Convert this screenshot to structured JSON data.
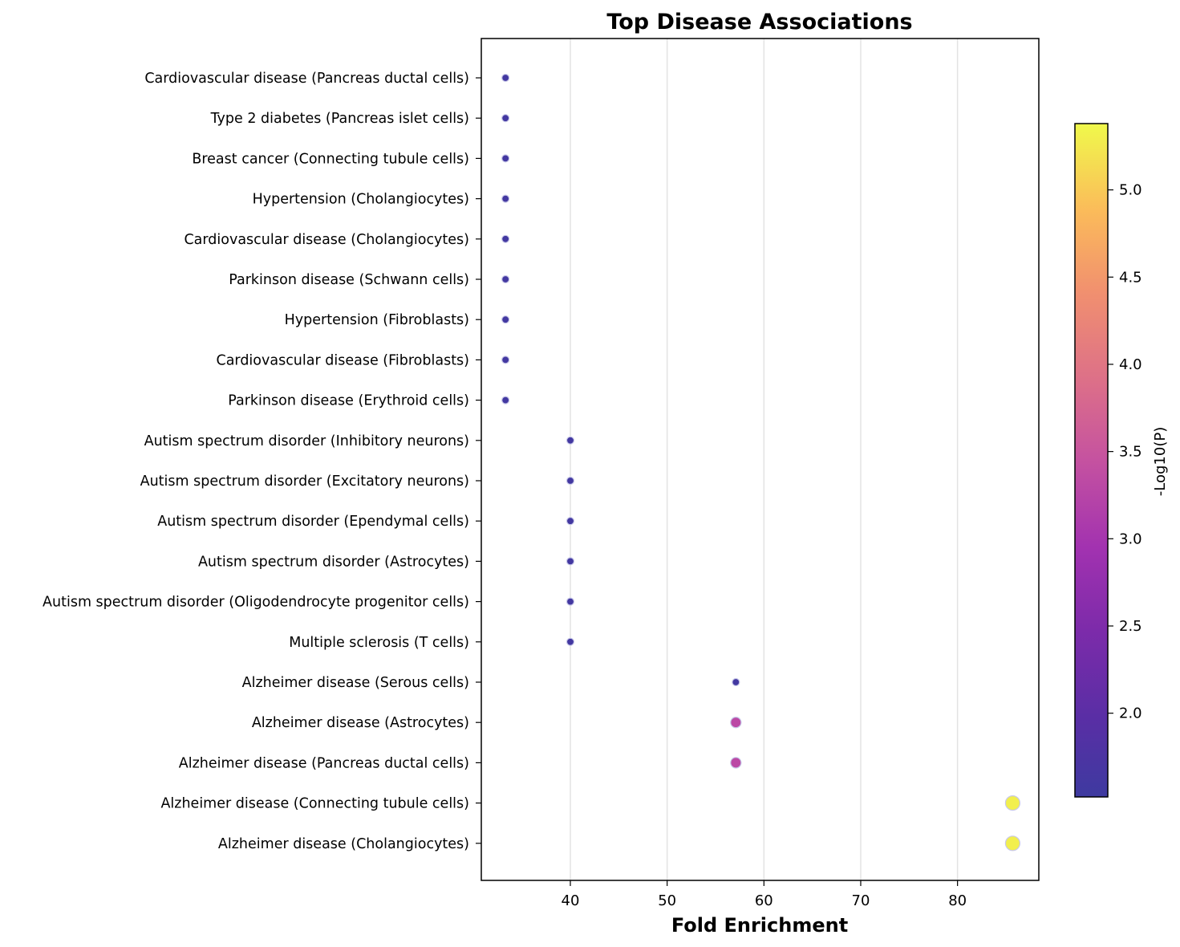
{
  "chart_data": {
    "type": "scatter",
    "title": "Top Disease Associations",
    "xlabel": "Fold Enrichment",
    "ylabel": "",
    "xlim": [
      30.8,
      88.4
    ],
    "xticks": [
      40,
      50,
      60,
      70,
      80
    ],
    "grid": "vertical",
    "colormap": "plasma",
    "colorbar": {
      "label": "-Log10(P)",
      "range": [
        1.52,
        5.38
      ],
      "ticks": [
        "2.0",
        "2.5",
        "3.0",
        "3.5",
        "4.0",
        "4.5",
        "5.0"
      ]
    },
    "points": [
      {
        "label": "Cardiovascular disease (Pancreas ductal cells)",
        "x": 33.3,
        "neg_log10_p": 1.6
      },
      {
        "label": "Type 2 diabetes (Pancreas islet cells)",
        "x": 33.3,
        "neg_log10_p": 1.6
      },
      {
        "label": "Breast cancer (Connecting tubule cells)",
        "x": 33.3,
        "neg_log10_p": 1.6
      },
      {
        "label": "Hypertension (Cholangiocytes)",
        "x": 33.3,
        "neg_log10_p": 1.6
      },
      {
        "label": "Cardiovascular disease (Cholangiocytes)",
        "x": 33.3,
        "neg_log10_p": 1.6
      },
      {
        "label": "Parkinson disease (Schwann cells)",
        "x": 33.3,
        "neg_log10_p": 1.6
      },
      {
        "label": "Hypertension (Fibroblasts)",
        "x": 33.3,
        "neg_log10_p": 1.6
      },
      {
        "label": "Cardiovascular disease (Fibroblasts)",
        "x": 33.3,
        "neg_log10_p": 1.6
      },
      {
        "label": "Parkinson disease (Erythroid cells)",
        "x": 33.3,
        "neg_log10_p": 1.6
      },
      {
        "label": "Autism spectrum disorder (Inhibitory neurons)",
        "x": 40.0,
        "neg_log10_p": 1.6
      },
      {
        "label": "Autism spectrum disorder (Excitatory neurons)",
        "x": 40.0,
        "neg_log10_p": 1.6
      },
      {
        "label": "Autism spectrum disorder (Ependymal cells)",
        "x": 40.0,
        "neg_log10_p": 1.6
      },
      {
        "label": "Autism spectrum disorder (Astrocytes)",
        "x": 40.0,
        "neg_log10_p": 1.6
      },
      {
        "label": "Autism spectrum disorder (Oligodendrocyte progenitor cells)",
        "x": 40.0,
        "neg_log10_p": 1.6
      },
      {
        "label": "Multiple sclerosis (T cells)",
        "x": 40.0,
        "neg_log10_p": 1.6
      },
      {
        "label": "Alzheimer disease (Serous cells)",
        "x": 57.1,
        "neg_log10_p": 1.6
      },
      {
        "label": "Alzheimer disease (Astrocytes)",
        "x": 57.1,
        "neg_log10_p": 3.3
      },
      {
        "label": "Alzheimer disease (Pancreas ductal cells)",
        "x": 57.1,
        "neg_log10_p": 3.3
      },
      {
        "label": "Alzheimer disease (Connecting tubule cells)",
        "x": 85.7,
        "neg_log10_p": 5.3
      },
      {
        "label": "Alzheimer disease (Cholangiocytes)",
        "x": 85.7,
        "neg_log10_p": 5.3
      }
    ]
  }
}
